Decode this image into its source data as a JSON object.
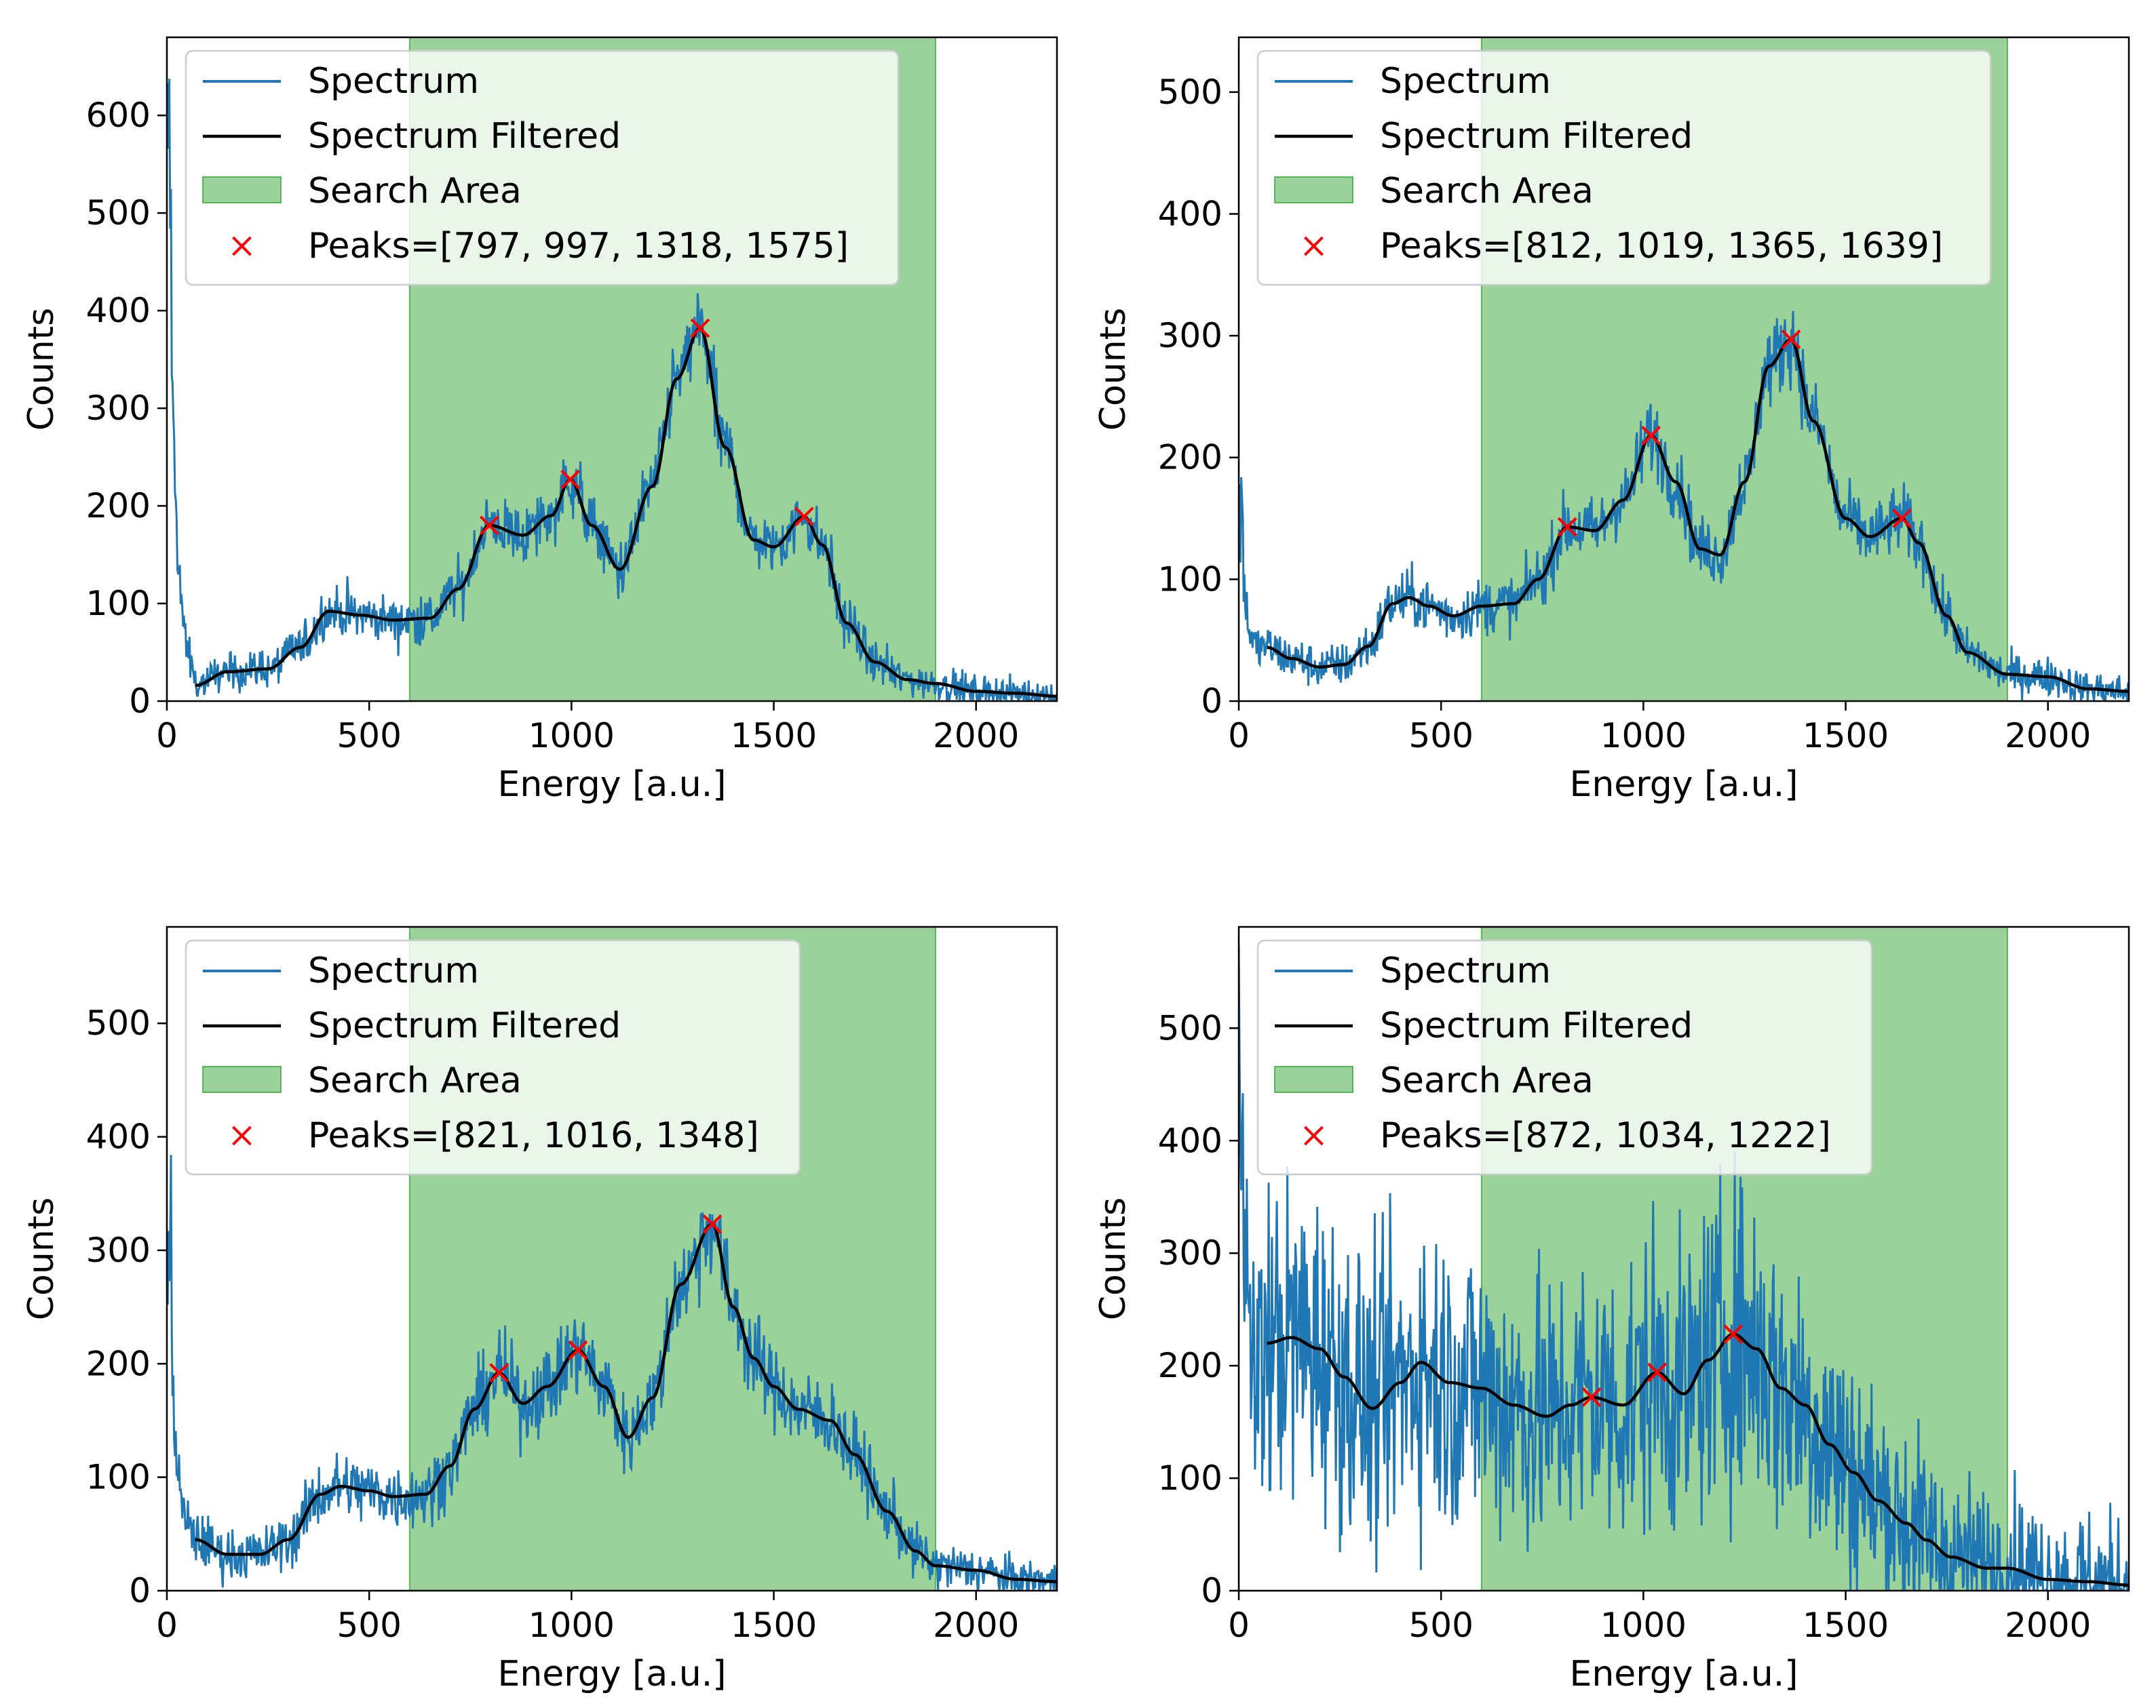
{
  "colors": {
    "spectrum": "#1f77b4",
    "filtered": "#000000",
    "search_area": "#2ca02c",
    "peaks": "#ff0000"
  },
  "legend_labels": {
    "spectrum": "Spectrum",
    "filtered": "Spectrum Filtered",
    "search_area": "Search Area"
  },
  "chart_data": [
    {
      "type": "line",
      "xlabel": "Energy [a.u.]",
      "ylabel": "Counts",
      "xlim": [
        0,
        2200
      ],
      "ylim": [
        0,
        680
      ],
      "xticks": [
        0,
        500,
        1000,
        1500,
        2000
      ],
      "yticks": [
        0,
        100,
        200,
        300,
        400,
        500,
        600
      ],
      "legend_position": "top-left",
      "search_area": [
        600,
        1900
      ],
      "peaks": {
        "label": "Peaks=[797, 997, 1318, 1575]",
        "x": [
          797,
          997,
          1318,
          1575
        ],
        "y": [
          180,
          227,
          382,
          189
        ]
      },
      "filtered": {
        "x": [
          70,
          150,
          250,
          330,
          400,
          480,
          560,
          650,
          720,
          797,
          880,
          950,
          997,
          1050,
          1120,
          1200,
          1260,
          1318,
          1380,
          1450,
          1500,
          1575,
          1620,
          1680,
          1750,
          1830,
          1900,
          2000,
          2100,
          2200
        ],
        "y": [
          16,
          30,
          33,
          55,
          92,
          88,
          83,
          85,
          115,
          180,
          170,
          190,
          227,
          180,
          135,
          220,
          330,
          382,
          260,
          165,
          158,
          189,
          160,
          80,
          40,
          22,
          18,
          10,
          8,
          5
        ]
      },
      "noise": 22,
      "spike": {
        "x": 28,
        "y": 680
      }
    },
    {
      "type": "line",
      "xlabel": "Energy [a.u.]",
      "ylabel": "Counts",
      "xlim": [
        0,
        2200
      ],
      "ylim": [
        0,
        545
      ],
      "xticks": [
        0,
        500,
        1000,
        1500,
        2000
      ],
      "yticks": [
        0,
        100,
        200,
        300,
        400,
        500
      ],
      "legend_position": "top-left",
      "search_area": [
        600,
        1900
      ],
      "peaks": {
        "label": "Peaks=[812, 1019, 1365, 1639]",
        "x": [
          812,
          1019,
          1365,
          1639
        ],
        "y": [
          143,
          218,
          297,
          150
        ]
      },
      "filtered": {
        "x": [
          70,
          130,
          200,
          260,
          320,
          380,
          420,
          470,
          530,
          600,
          680,
          740,
          812,
          880,
          950,
          1019,
          1080,
          1140,
          1190,
          1250,
          1310,
          1365,
          1420,
          1500,
          1560,
          1639,
          1680,
          1750,
          1800,
          1900,
          2000,
          2100,
          2200
        ],
        "y": [
          44,
          35,
          28,
          30,
          45,
          80,
          85,
          78,
          70,
          78,
          80,
          100,
          143,
          140,
          165,
          218,
          180,
          125,
          120,
          180,
          275,
          297,
          230,
          150,
          135,
          150,
          130,
          70,
          40,
          22,
          20,
          10,
          8
        ]
      },
      "noise": 20,
      "spike": {
        "x": 40,
        "y": 185
      }
    },
    {
      "type": "line",
      "xlabel": "Energy [a.u.]",
      "ylabel": "Counts",
      "xlim": [
        0,
        2200
      ],
      "ylim": [
        0,
        585
      ],
      "xticks": [
        0,
        500,
        1000,
        1500,
        2000
      ],
      "yticks": [
        0,
        100,
        200,
        300,
        400,
        500
      ],
      "legend_position": "top-left",
      "search_area": [
        600,
        1900
      ],
      "peaks": {
        "label": "Peaks=[821, 1016, 1348]",
        "x": [
          821,
          1016,
          1348
        ],
        "y": [
          192,
          212,
          323
        ]
      },
      "filtered": {
        "x": [
          70,
          150,
          230,
          300,
          380,
          430,
          500,
          560,
          640,
          700,
          760,
          821,
          880,
          940,
          1016,
          1080,
          1140,
          1200,
          1270,
          1348,
          1400,
          1450,
          1500,
          1560,
          1640,
          1700,
          1780,
          1850,
          1900,
          2000,
          2100,
          2200
        ],
        "y": [
          45,
          32,
          32,
          45,
          85,
          92,
          88,
          83,
          85,
          110,
          160,
          192,
          165,
          180,
          212,
          180,
          135,
          170,
          270,
          323,
          250,
          205,
          180,
          160,
          150,
          120,
          70,
          35,
          22,
          18,
          10,
          8
        ]
      },
      "noise": 25,
      "spike": {
        "x": 50,
        "y": 400
      }
    },
    {
      "type": "line",
      "xlabel": "Energy [a.u.]",
      "ylabel": "Counts",
      "xlim": [
        0,
        2200
      ],
      "ylim": [
        0,
        590
      ],
      "xticks": [
        0,
        500,
        1000,
        1500,
        2000
      ],
      "yticks": [
        0,
        100,
        200,
        300,
        400,
        500
      ],
      "legend_position": "top-left",
      "search_area": [
        600,
        1900
      ],
      "peaks": {
        "label": "Peaks=[872, 1034, 1222]",
        "x": [
          872,
          1034,
          1222
        ],
        "y": [
          172,
          194,
          228
        ]
      },
      "filtered": {
        "x": [
          70,
          130,
          200,
          260,
          330,
          400,
          450,
          520,
          600,
          680,
          760,
          820,
          872,
          950,
          1034,
          1100,
          1160,
          1222,
          1280,
          1340,
          1400,
          1460,
          1520,
          1580,
          1650,
          1700,
          1760,
          1850,
          1900,
          2000,
          2100,
          2200
        ],
        "y": [
          220,
          225,
          215,
          190,
          162,
          185,
          203,
          185,
          180,
          165,
          155,
          165,
          172,
          165,
          194,
          175,
          205,
          228,
          215,
          180,
          165,
          130,
          105,
          80,
          60,
          45,
          30,
          20,
          20,
          10,
          8,
          5
        ]
      },
      "noise": 90,
      "spike": {
        "x": 30,
        "y": 590
      }
    }
  ]
}
